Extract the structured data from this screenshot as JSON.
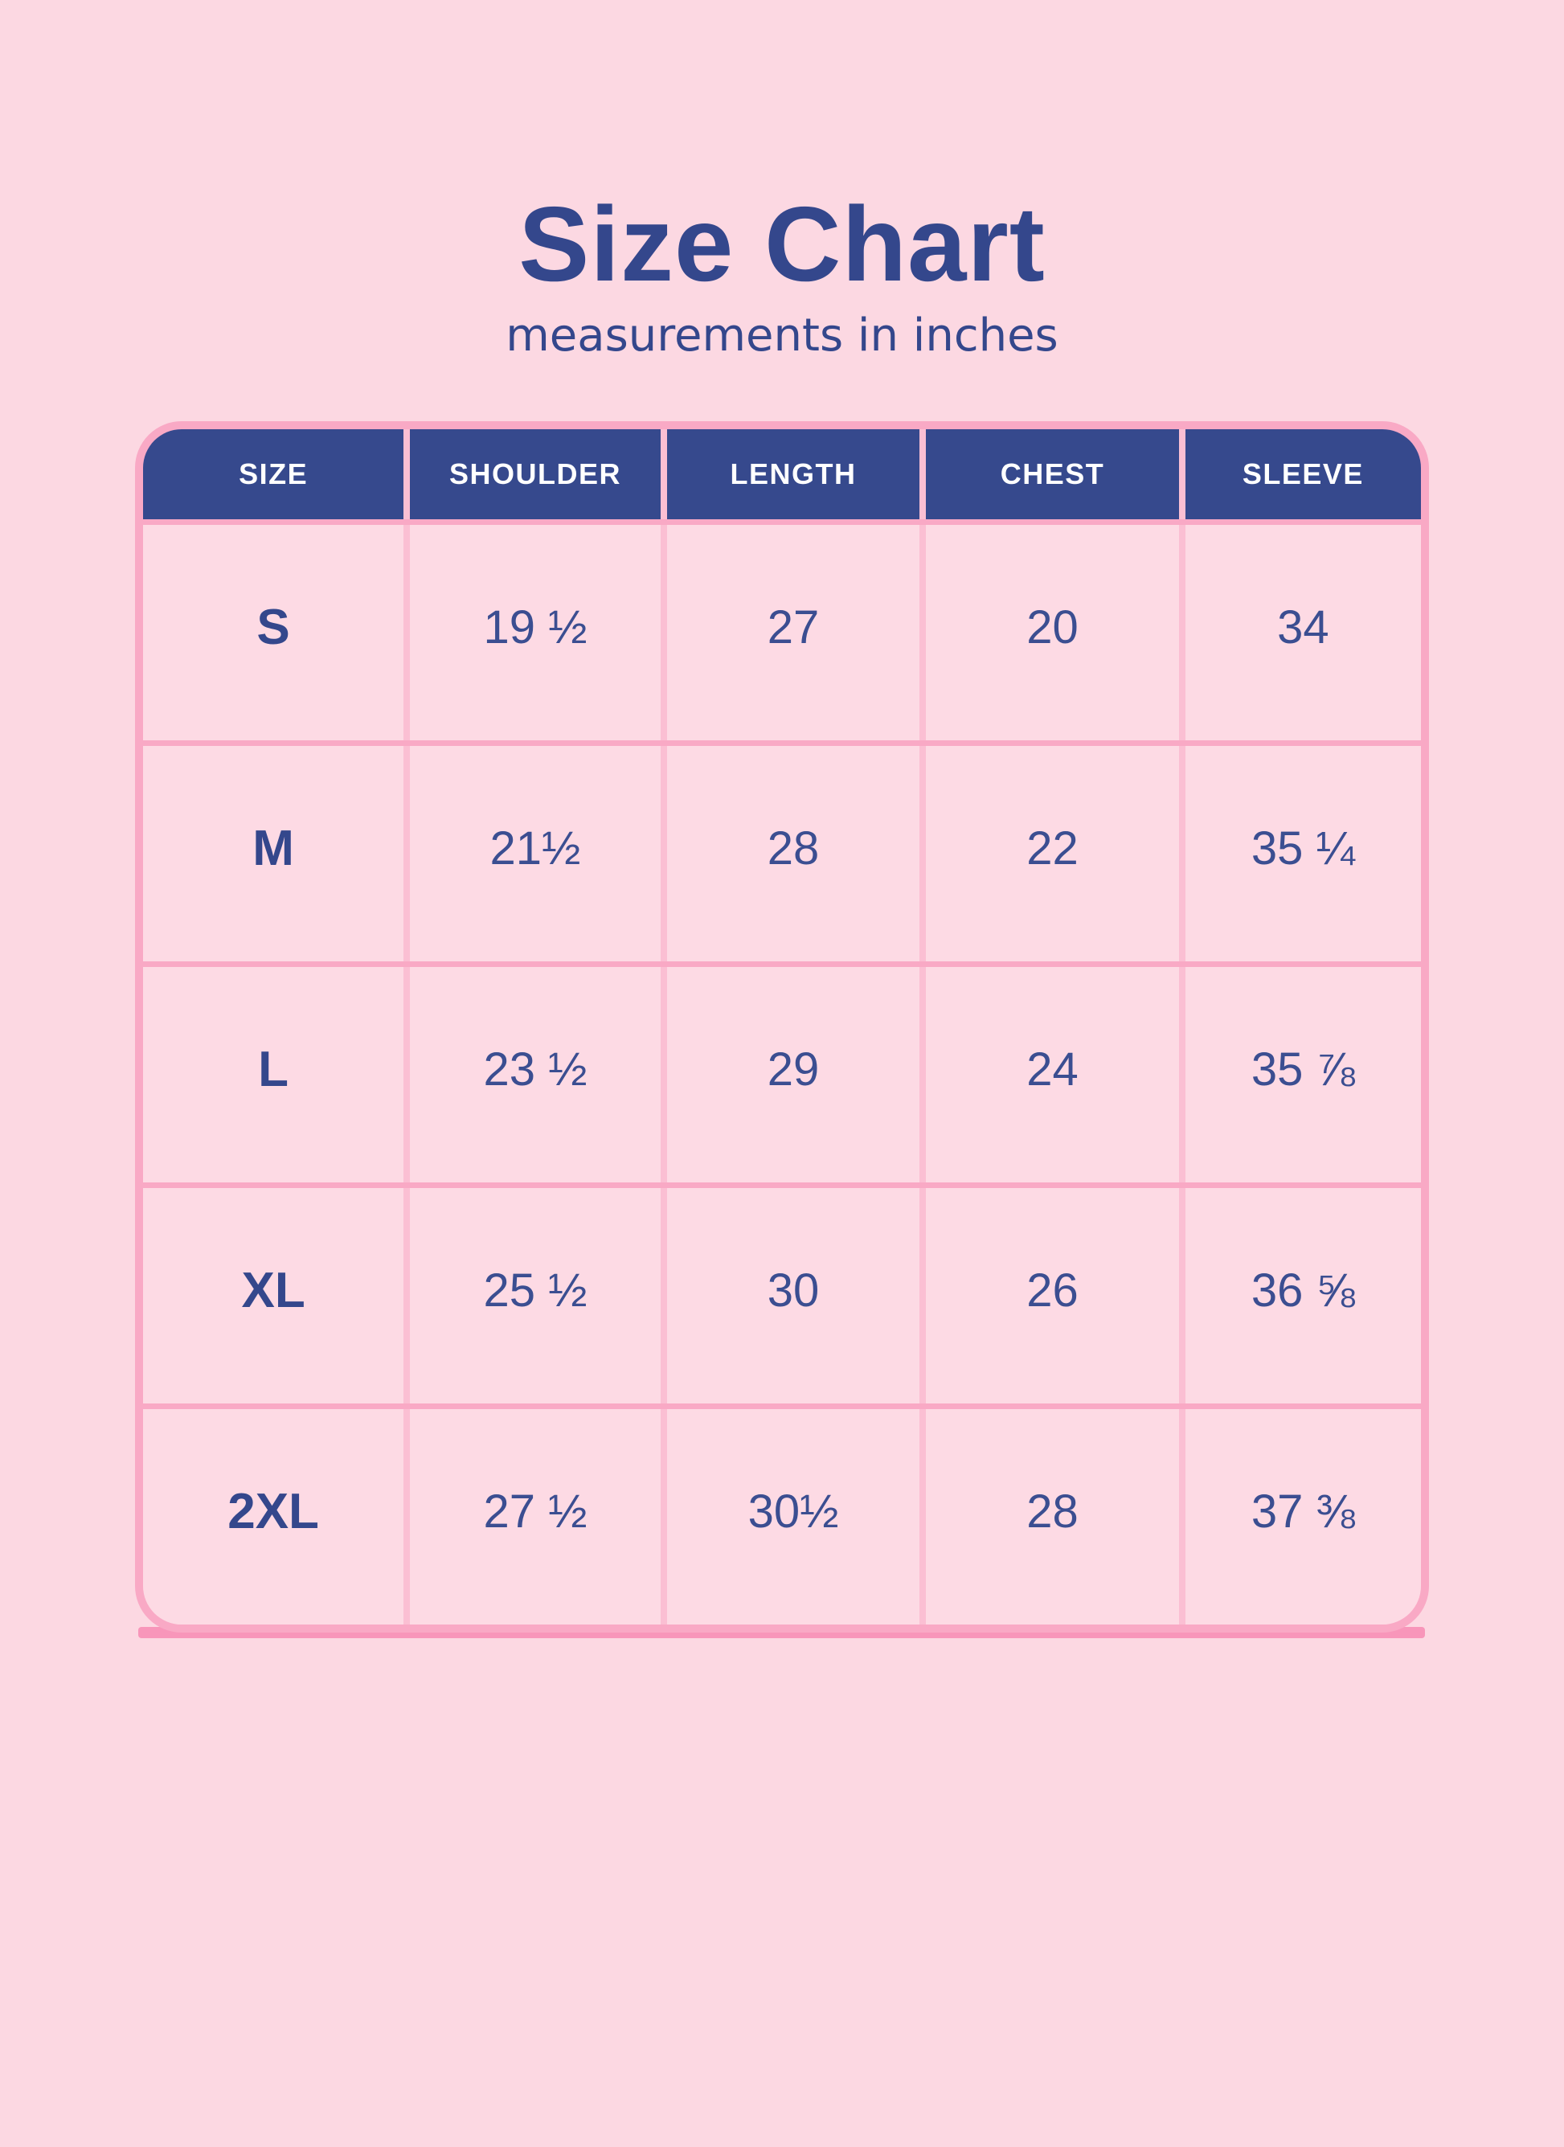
{
  "title": "Size Chart",
  "subtitle": "measurements in inches",
  "colors": {
    "background": "#FCD8E2",
    "cell_bg": "#FDDAE4",
    "header_bg": "#36498D",
    "header_text": "#FFFFFF",
    "accent_navy": "#34478C",
    "number_navy": "#3B4E91",
    "border_pink": "#F9A9C5",
    "divider_pink": "#FBBFD3",
    "shadow_pink": "#F896BA"
  },
  "table": {
    "headers": [
      "SIZE",
      "SHOULDER",
      "LENGTH",
      "CHEST",
      "SLEEVE"
    ],
    "rows": [
      {
        "size": "S",
        "shoulder": "19 ½",
        "length": "27",
        "chest": "20",
        "sleeve": "34"
      },
      {
        "size": "M",
        "shoulder": "21½",
        "length": "28",
        "chest": "22",
        "sleeve": "35 ¼"
      },
      {
        "size": "L",
        "shoulder": "23 ½",
        "length": "29",
        "chest": "24",
        "sleeve": "35 ⅞"
      },
      {
        "size": "XL",
        "shoulder": "25 ½",
        "length": "30",
        "chest": "26",
        "sleeve": "36 ⅝"
      },
      {
        "size": "2XL",
        "shoulder": "27 ½",
        "length": "30½",
        "chest": "28",
        "sleeve": "37 ⅜"
      }
    ]
  }
}
